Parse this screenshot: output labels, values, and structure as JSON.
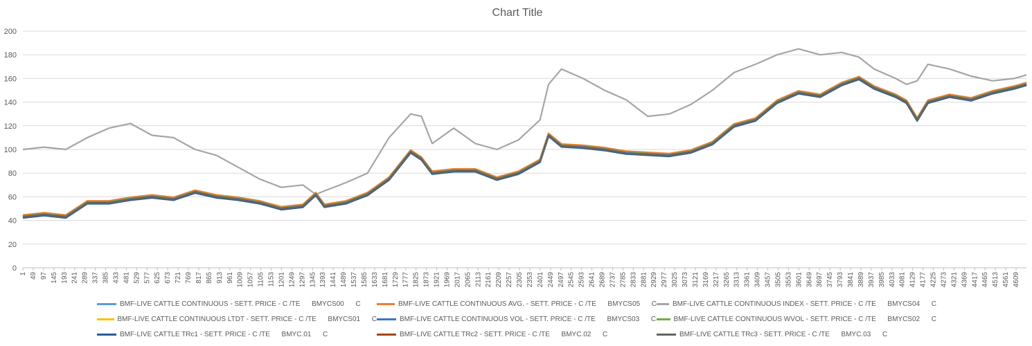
{
  "chart_data": {
    "type": "line",
    "title": "Chart Title",
    "xlabel": "",
    "ylabel": "",
    "ylim": [
      0,
      200
    ],
    "y_ticks": [
      0,
      20,
      40,
      60,
      80,
      100,
      120,
      140,
      160,
      180,
      200
    ],
    "x_range": [
      1,
      4657
    ],
    "x_tick_step": 48,
    "x_ticks": [
      1,
      49,
      97,
      145,
      193,
      241,
      289,
      337,
      385,
      433,
      481,
      529,
      577,
      625,
      673,
      721,
      769,
      817,
      865,
      913,
      961,
      1009,
      1057,
      1105,
      1153,
      1201,
      1249,
      1297,
      1345,
      1393,
      1441,
      1489,
      1537,
      1585,
      1633,
      1681,
      1729,
      1777,
      1825,
      1873,
      1921,
      1969,
      2017,
      2065,
      2113,
      2161,
      2209,
      2257,
      2305,
      2353,
      2401,
      2449,
      2497,
      2545,
      2593,
      2641,
      2689,
      2737,
      2785,
      2833,
      2881,
      2929,
      2977,
      3025,
      3073,
      3121,
      3169,
      3217,
      3265,
      3313,
      3361,
      3409,
      3457,
      3505,
      3553,
      3601,
      3649,
      3697,
      3745,
      3793,
      3841,
      3889,
      3937,
      3985,
      4033,
      4081,
      4129,
      4177,
      4225,
      4273,
      4321,
      4369,
      4417,
      4465,
      4513,
      4561,
      4609
    ],
    "grid": true,
    "legend_position": "bottom",
    "x": [
      1,
      100,
      200,
      300,
      400,
      500,
      600,
      700,
      800,
      900,
      1000,
      1100,
      1200,
      1300,
      1360,
      1400,
      1500,
      1600,
      1700,
      1800,
      1850,
      1900,
      2000,
      2100,
      2200,
      2300,
      2400,
      2440,
      2500,
      2600,
      2700,
      2800,
      2900,
      3000,
      3100,
      3200,
      3300,
      3400,
      3500,
      3600,
      3700,
      3800,
      3880,
      3950,
      4050,
      4100,
      4150,
      4200,
      4300,
      4400,
      4500,
      4600,
      4657
    ],
    "series": [
      {
        "name": "BMF-LIVE CATTLE CONTINUOUS - SETT. PRICE - C /TE",
        "code": "BMYCS00",
        "unit": "C",
        "color": "#5b9bd5",
        "offset": 0
      },
      {
        "name": "BMF-LIVE CATTLE CONTINUOUS AVG. - SETT. PRICE - C /TE",
        "code": "BMYCS05",
        "unit": "C",
        "color": "#ed7d31",
        "offset": 1.5
      },
      {
        "name": "BMF-LIVE CATTLE CONTINUOUS INDEX - SETT. PRICE - C /TE",
        "code": "BMYCS04",
        "unit": "C",
        "color": "#a5a5a5",
        "values": [
          100,
          102,
          100,
          110,
          118,
          122,
          112,
          110,
          100,
          95,
          85,
          75,
          68,
          70,
          62,
          65,
          72,
          80,
          110,
          130,
          128,
          105,
          118,
          105,
          100,
          108,
          125,
          155,
          168,
          160,
          150,
          142,
          128,
          130,
          138,
          150,
          165,
          172,
          180,
          185,
          180,
          182,
          178,
          168,
          160,
          155,
          158,
          172,
          168,
          162,
          158,
          160,
          163
        ]
      },
      {
        "name": "BMF-LIVE CATTLE CONTINUOUS LTDT - SETT. PRICE - C /TE",
        "code": "BMYCS01",
        "unit": "C",
        "color": "#ffc000",
        "offset": 0.3
      },
      {
        "name": "BMF-LIVE CATTLE CONTINUOUS VOL - SETT. PRICE - C /TE",
        "code": "BMYCS03",
        "unit": "C",
        "color": "#4472c4",
        "offset": -0.4
      },
      {
        "name": "BMF-LIVE CATTLE CONTINUOUS WVOL - SETT. PRICE - C /TE",
        "code": "BMYCS02",
        "unit": "C",
        "color": "#70ad47",
        "offset": 0.6
      },
      {
        "name": "BMF-LIVE CATTLE TRc1 - SETT. PRICE - C /TE",
        "code": "BMYC.01",
        "unit": "C",
        "color": "#255e91",
        "offset": -0.8
      },
      {
        "name": "BMF-LIVE CATTLE TRc2 - SETT. PRICE - C /TE",
        "code": "BMYC.02",
        "unit": "C",
        "color": "#9e480e",
        "offset": 0.2
      },
      {
        "name": "BMF-LIVE CATTLE TRc3 - SETT. PRICE - C /TE",
        "code": "BMYC.03",
        "unit": "C",
        "color": "#636363",
        "offset": -0.2
      }
    ],
    "base_values": [
      43,
      45,
      43,
      55,
      55,
      58,
      60,
      58,
      64,
      60,
      58,
      55,
      50,
      52,
      62,
      52,
      55,
      62,
      75,
      98,
      92,
      80,
      82,
      82,
      75,
      80,
      90,
      112,
      103,
      102,
      100,
      97,
      96,
      95,
      98,
      105,
      120,
      125,
      140,
      148,
      145,
      155,
      160,
      152,
      145,
      140,
      125,
      140,
      145,
      142,
      148,
      152,
      155
    ]
  }
}
